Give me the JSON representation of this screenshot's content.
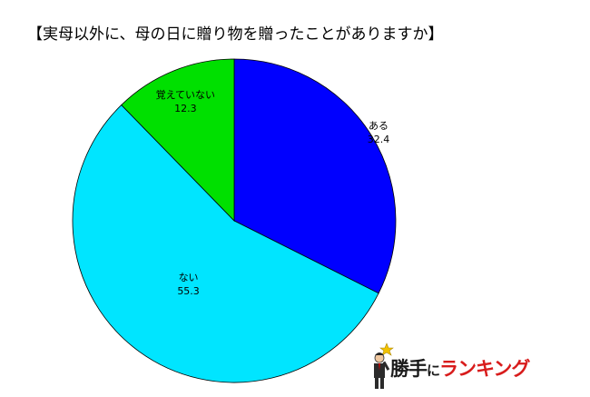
{
  "title": "【実母以外に、母の日に贈り物を贈ったことがありますか】",
  "chart_data": {
    "type": "pie",
    "title": "【実母以外に、母の日に贈り物を贈ったことがありますか】",
    "start_angle": "12 o'clock",
    "direction": "clockwise",
    "slices": [
      {
        "label": "ある",
        "value": 32.4,
        "value_text": "32.4",
        "color": "#0000ff"
      },
      {
        "label": "ない",
        "value": 55.3,
        "value_text": "55.3",
        "color": "#00e5ff"
      },
      {
        "label": "覚えていない",
        "value": 12.3,
        "value_text": "12.3",
        "color": "#00e000"
      }
    ]
  },
  "logo": {
    "text_kanji": "勝手",
    "text_ni": "に",
    "text_kana": "ランキング",
    "icon": "businessman-with-star-icon"
  }
}
